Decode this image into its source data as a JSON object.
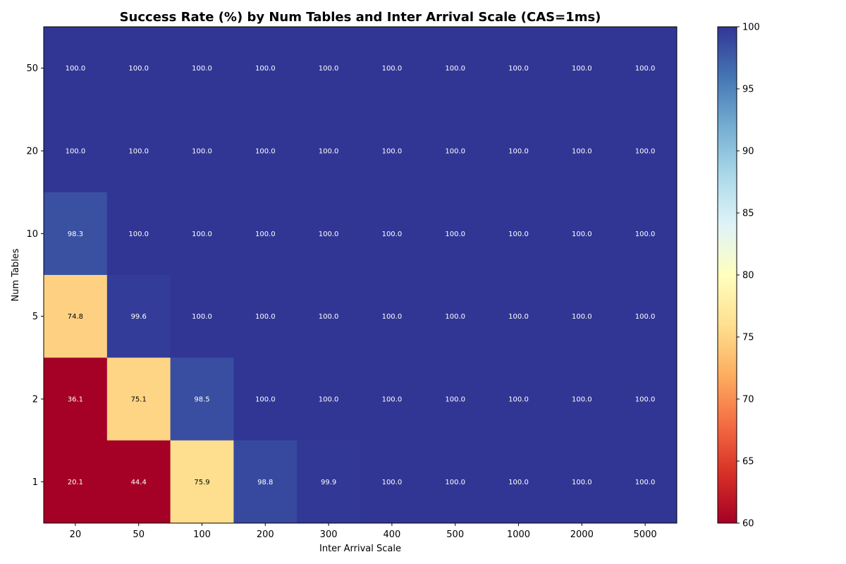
{
  "chart_data": {
    "type": "heatmap",
    "title": "Success Rate (%) by Num Tables and Inter Arrival Scale (CAS=1ms)",
    "xlabel": "Inter Arrival Scale",
    "ylabel": "Num Tables",
    "x_categories": [
      "20",
      "50",
      "100",
      "200",
      "300",
      "400",
      "500",
      "1000",
      "2000",
      "5000"
    ],
    "y_categories": [
      "50",
      "20",
      "10",
      "5",
      "2",
      "1"
    ],
    "values": [
      [
        100.0,
        100.0,
        100.0,
        100.0,
        100.0,
        100.0,
        100.0,
        100.0,
        100.0,
        100.0
      ],
      [
        100.0,
        100.0,
        100.0,
        100.0,
        100.0,
        100.0,
        100.0,
        100.0,
        100.0,
        100.0
      ],
      [
        98.3,
        100.0,
        100.0,
        100.0,
        100.0,
        100.0,
        100.0,
        100.0,
        100.0,
        100.0
      ],
      [
        74.8,
        99.6,
        100.0,
        100.0,
        100.0,
        100.0,
        100.0,
        100.0,
        100.0,
        100.0
      ],
      [
        36.1,
        75.1,
        98.5,
        100.0,
        100.0,
        100.0,
        100.0,
        100.0,
        100.0,
        100.0
      ],
      [
        20.1,
        44.4,
        75.9,
        98.8,
        99.9,
        100.0,
        100.0,
        100.0,
        100.0,
        100.0
      ]
    ],
    "colormap": "RdYlBu",
    "colorbar": {
      "vmin": 60,
      "vmax": 100,
      "ticks": [
        60,
        65,
        70,
        75,
        80,
        85,
        90,
        95,
        100
      ]
    },
    "grid": false
  }
}
